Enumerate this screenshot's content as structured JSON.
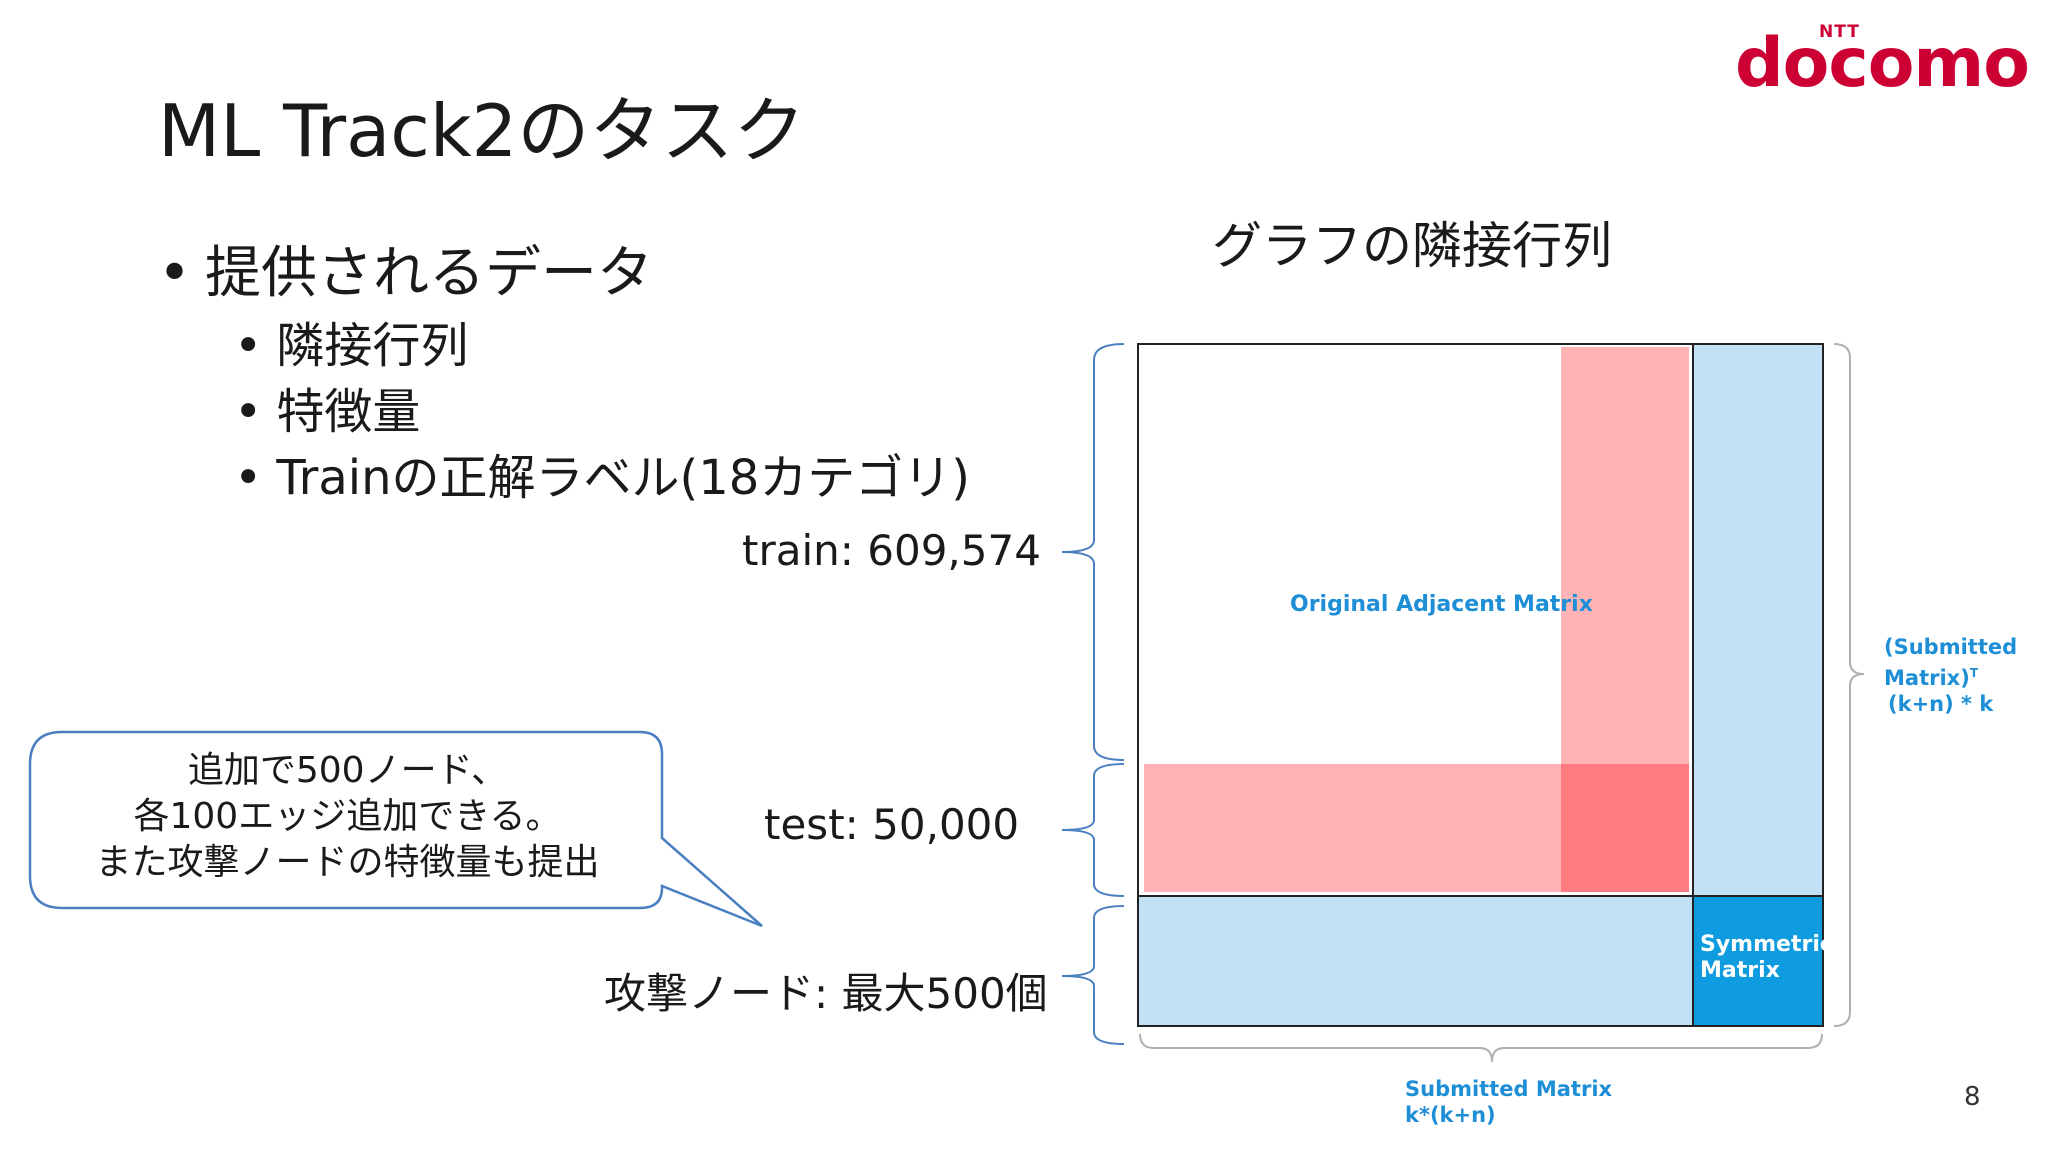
{
  "logo": {
    "top": "NTT",
    "word": "docomo"
  },
  "slide": {
    "title": "ML Track2のタスク",
    "page_number": "8"
  },
  "bullets": {
    "main": "提供されるデータ",
    "sub": [
      "隣接行列",
      "特徴量",
      "Trainの正解ラベル(18カテゴリ)"
    ]
  },
  "diagram": {
    "title": "グラフの隣接行列",
    "train_label": "train: 609,574",
    "test_label": "test: 50,000",
    "attack_label": "攻撃ノード: 最大500個",
    "original_label": "Original Adjacent Matrix",
    "submitted_t_label": [
      "(Submitted",
      "Matrix)",
      "(k+n) * k"
    ],
    "submitted_t_superscript": "T",
    "symmetric_label": [
      "Symmetric",
      "Matrix"
    ],
    "submitted_label": [
      "Submitted Matrix",
      "k*(k+n)"
    ],
    "colors": {
      "pink": "#ffb3b5",
      "pink_overlap": "#ff7b7f",
      "light_blue": "#c3e1f5",
      "symmetric_blue": "#0f9be0",
      "brace": "#4a7fc1",
      "label_blue": "#1e8fd6"
    }
  },
  "callout": {
    "lines": [
      "追加で500ノード、",
      "各100エッジ追加できる。",
      "また攻撃ノードの特徴量も提出"
    ]
  }
}
